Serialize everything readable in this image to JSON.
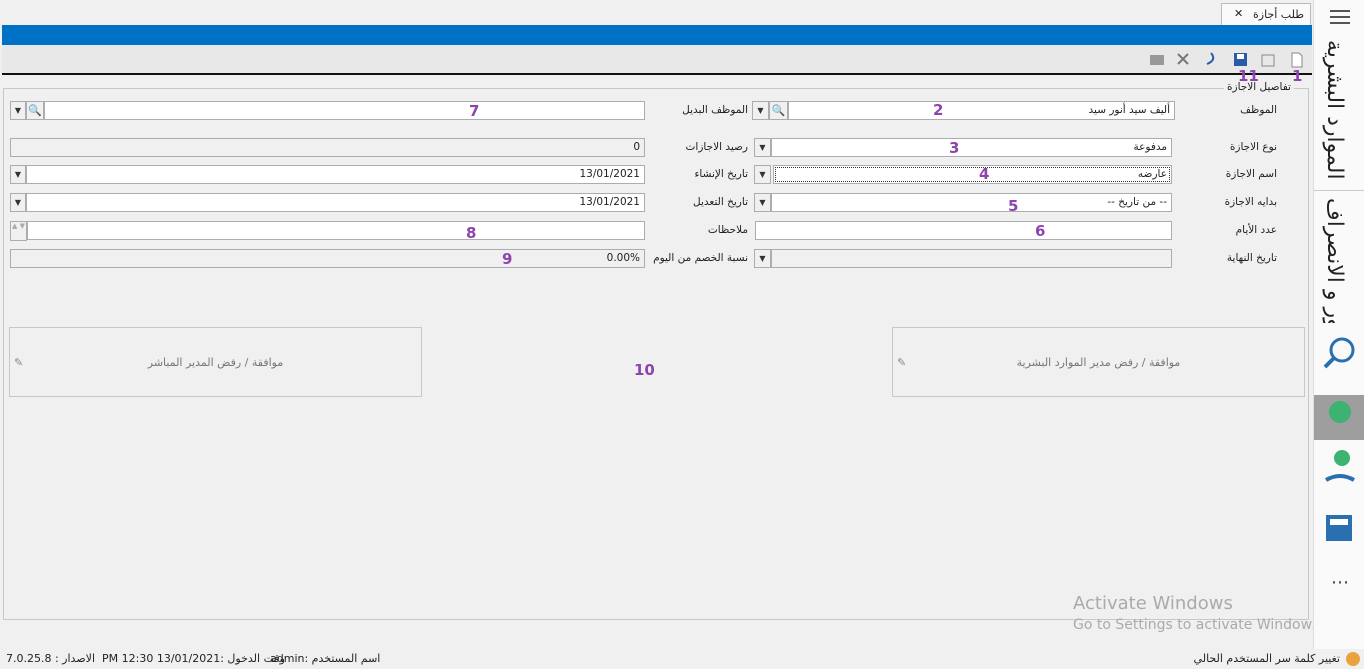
{
  "tab": {
    "title": "طلب أجازة"
  },
  "sidebar": {
    "sections": [
      "الموارد البشرية",
      "الحضور و الانصراف"
    ]
  },
  "toolbar": {
    "annotations": [
      "1",
      "11"
    ]
  },
  "form": {
    "group_title": "تفاصيل الاجازة",
    "right_fields": [
      {
        "label": "الموظف",
        "value": "أليف سيد أنور سيد",
        "annotation": "2"
      },
      {
        "label": "نوع الاجازة",
        "value": "مدفوعة",
        "annotation": "3"
      },
      {
        "label": "اسم الاجازة",
        "value": "عارضه",
        "annotation": "4"
      },
      {
        "label": "بدايه الاجازة",
        "value": "-- من تاريخ --",
        "annotation": "5"
      },
      {
        "label": "عدد الأيام",
        "annotation": "6"
      },
      {
        "label": "تاريخ النهاية"
      }
    ],
    "left_fields": [
      {
        "label": "الموظف البديل",
        "annotation": "7"
      },
      {
        "label": "رصيد الاجازات",
        "value": "0"
      },
      {
        "label": "تاريخ الإنشاء",
        "value": "13/01/2021"
      },
      {
        "label": "تاريخ التعديل",
        "value": "13/01/2021"
      },
      {
        "label": "ملاحظات",
        "annotation": "8"
      },
      {
        "label": "نسبة الخصم من اليوم",
        "value": "0.00%",
        "annotation": "9"
      }
    ],
    "approvals": {
      "hr_manager": "موافقة / رفض مدير الموارد البشرية",
      "direct_manager": "موافقة / رفض المدير المباشر",
      "annotation": "10"
    }
  },
  "watermark": {
    "title": "Activate Windows",
    "subtitle": "Go to Settings to activate Windows."
  },
  "status_bar": {
    "change_password": "تغيير كلمة سر المستخدم الحالي",
    "user": "اسم المستخدم :admin",
    "login_time": "وقت الدخول :13/01/2021 12:30 PM",
    "version": "الاصدار : 7.0.25.8"
  }
}
